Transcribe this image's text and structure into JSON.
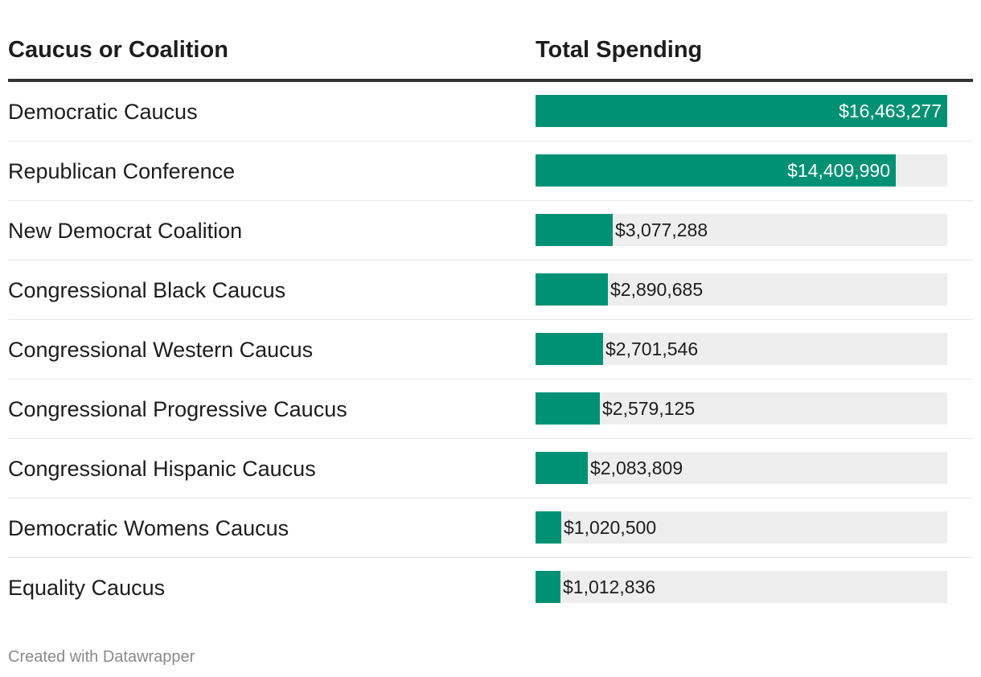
{
  "chart_data": {
    "type": "table",
    "columns": [
      "Caucus or Coalition",
      "Total Spending"
    ],
    "categories": [
      "Democratic Caucus",
      "Republican Conference",
      "New Democrat Coalition",
      "Congressional Black Caucus",
      "Congressional Western Caucus",
      "Congressional Progressive Caucus",
      "Congressional Hispanic Caucus",
      "Democratic Womens Caucus",
      "Equality Caucus"
    ],
    "values": [
      16463277,
      14409990,
      3077288,
      2890685,
      2701546,
      2579125,
      2083809,
      1020500,
      1012836
    ],
    "value_labels": [
      "$16,463,277",
      "$14,409,990",
      "$3,077,288",
      "$2,890,685",
      "$2,701,546",
      "$2,579,125",
      "$2,083,809",
      "$1,020,500",
      "$1,012,836"
    ],
    "xlim": [
      0,
      16463277
    ],
    "bar_color": "#009175",
    "track_color": "#eeeeee"
  },
  "footer": {
    "credit": "Created with Datawrapper"
  }
}
